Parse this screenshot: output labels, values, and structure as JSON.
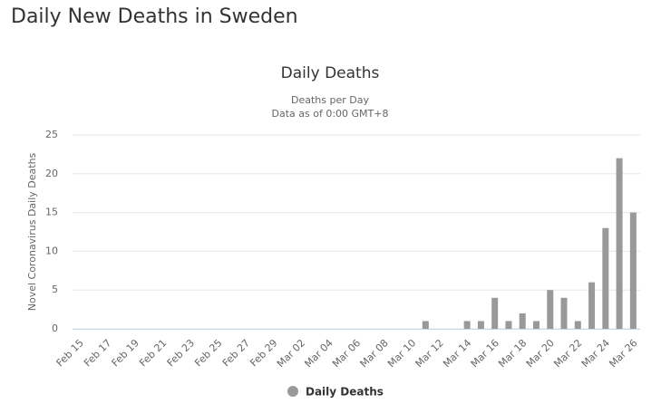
{
  "page_title": "Daily New Deaths in Sweden",
  "chart_data": {
    "type": "bar",
    "title": "Daily Deaths",
    "subtitle": [
      "Deaths per Day",
      "Data as of 0:00 GMT+8"
    ],
    "y_label": "Novel Coronavirus Daily Deaths",
    "categories": [
      "Feb 15",
      null,
      "Feb 17",
      null,
      "Feb 19",
      null,
      "Feb 21",
      null,
      "Feb 23",
      null,
      "Feb 25",
      null,
      "Feb 27",
      null,
      "Feb 29",
      null,
      "Mar 02",
      null,
      "Mar 04",
      null,
      "Mar 06",
      null,
      "Mar 08",
      null,
      "Mar 10",
      null,
      "Mar 12",
      null,
      "Mar 14",
      null,
      "Mar 16",
      null,
      "Mar 18",
      null,
      "Mar 20",
      null,
      "Mar 22",
      null,
      "Mar 24",
      null,
      "Mar 26"
    ],
    "series": [
      {
        "name": "Daily Deaths",
        "color": "#999999",
        "values": [
          0,
          0,
          0,
          0,
          0,
          0,
          0,
          0,
          0,
          0,
          0,
          0,
          0,
          0,
          0,
          0,
          0,
          0,
          0,
          0,
          0,
          0,
          0,
          0,
          0,
          1,
          0,
          0,
          1,
          1,
          4,
          1,
          2,
          1,
          5,
          4,
          1,
          6,
          13,
          22,
          15
        ]
      }
    ],
    "ylim": [
      0,
      25
    ],
    "yticks": [
      0,
      5,
      10,
      15,
      20,
      25
    ],
    "grid": true,
    "legend": "bottom"
  }
}
